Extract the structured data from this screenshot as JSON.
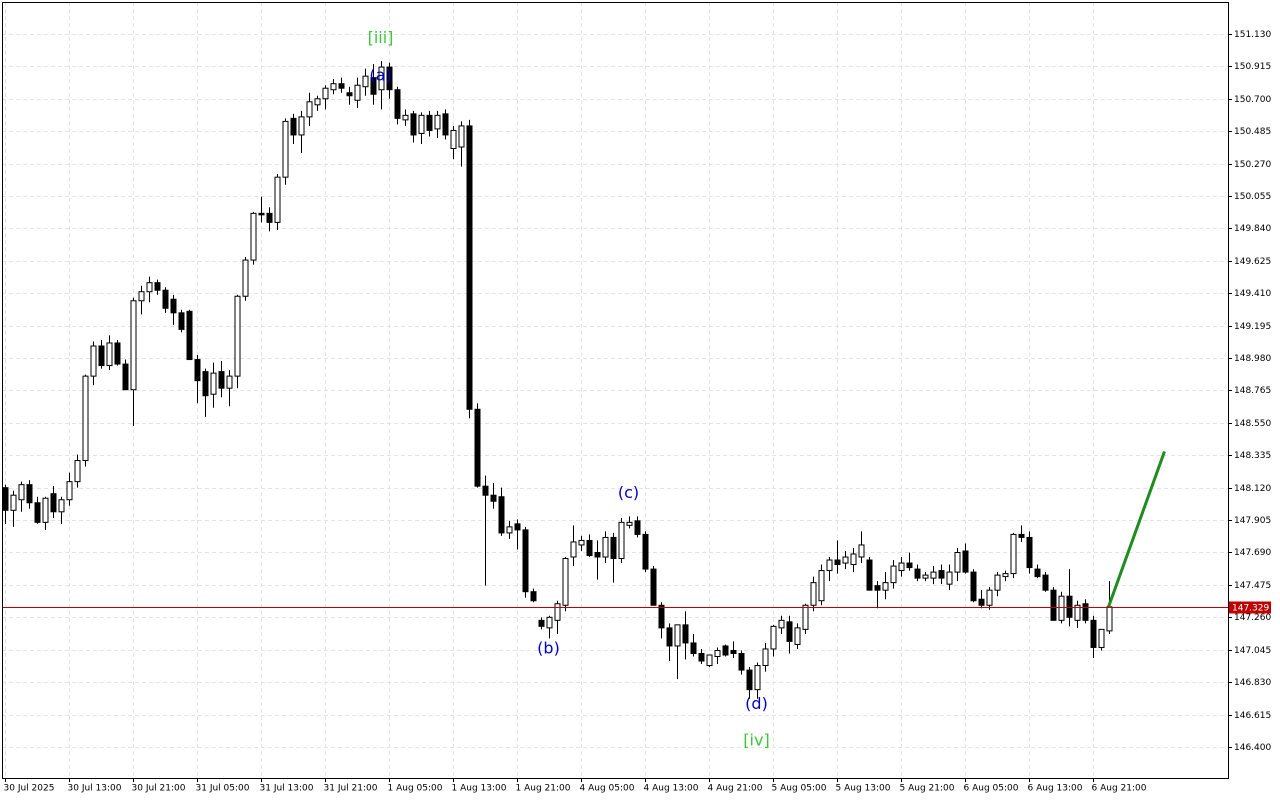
{
  "chart_data": {
    "type": "candlestick",
    "categories": [
      "30 Jul 2025",
      null,
      null,
      null,
      null,
      null,
      null,
      null,
      "30 Jul 13:00",
      null,
      null,
      null,
      null,
      null,
      null,
      null,
      "30 Jul 21:00",
      null,
      null,
      null,
      null,
      null,
      null,
      null,
      "31 Jul 05:00",
      null,
      null,
      null,
      null,
      null,
      null,
      null,
      "31 Jul 13:00",
      null,
      null,
      null,
      null,
      null,
      null,
      null,
      "31 Jul 21:00",
      null,
      null,
      null,
      null,
      null,
      null,
      null,
      "1 Aug 05:00",
      null,
      null,
      null,
      null,
      null,
      null,
      null,
      "1 Aug 13:00",
      null,
      null,
      null,
      null,
      null,
      null,
      null,
      "1 Aug 21:00",
      null,
      null,
      null,
      null,
      null,
      null,
      null,
      "4 Aug 05:00",
      null,
      null,
      null,
      null,
      null,
      null,
      null,
      "4 Aug 13:00",
      null,
      null,
      null,
      null,
      null,
      null,
      null,
      "4 Aug 21:00",
      null,
      null,
      null,
      null,
      null,
      null,
      null,
      "5 Aug 05:00",
      null,
      null,
      null,
      null,
      null,
      null,
      null,
      "5 Aug 13:00",
      null,
      null,
      null,
      null,
      null,
      null,
      null,
      "5 Aug 21:00",
      null,
      null,
      null,
      null,
      null,
      null,
      null,
      "6 Aug 05:00",
      null,
      null,
      null,
      null,
      null,
      null,
      null,
      "6 Aug 13:00",
      null,
      null,
      null,
      null,
      null,
      null,
      null,
      "6 Aug 21:00",
      null,
      null
    ],
    "open": [
      148.12,
      147.97,
      148.04,
      148.14,
      148.02,
      147.89,
      148.08,
      147.96,
      148.04,
      148.16,
      148.3,
      148.86,
      149.06,
      148.93,
      149.08,
      148.94,
      148.77,
      149.36,
      149.42,
      149.48,
      149.43,
      149.37,
      149.28,
      149.29,
      148.97,
      148.89,
      148.74,
      148.89,
      148.78,
      148.86,
      149.39,
      149.63,
      149.94,
      149.94,
      149.88,
      150.18,
      150.57,
      150.46,
      150.58,
      150.66,
      150.7,
      150.76,
      150.8,
      150.74,
      150.69,
      150.78,
      150.84,
      150.76,
      150.91,
      150.76,
      150.56,
      150.6,
      150.47,
      150.59,
      150.5,
      150.6,
      150.37,
      150.38,
      150.52,
      148.64,
      148.13,
      148.07,
      148.06,
      147.82,
      147.88,
      147.84,
      147.43,
      147.24,
      147.19,
      147.24,
      147.34,
      147.66,
      147.74,
      147.77,
      147.69,
      147.66,
      147.79,
      147.65,
      147.87,
      147.9,
      147.81,
      147.58,
      147.34,
      147.19,
      147.07,
      147.21,
      147.09,
      147.02,
      146.94,
      147.0,
      147.07,
      147.04,
      147.02,
      146.91,
      146.78,
      146.94,
      147.05,
      147.19,
      147.23,
      147.08,
      147.18,
      147.34,
      147.37,
      147.57,
      147.64,
      147.62,
      147.61,
      147.66,
      147.64,
      147.47,
      147.44,
      147.49,
      147.57,
      147.62,
      147.58,
      147.52,
      147.52,
      147.57,
      147.48,
      147.56,
      147.7,
      147.56,
      147.38,
      147.34,
      147.44,
      147.53,
      147.55,
      147.81,
      147.79,
      147.58,
      147.54,
      147.44,
      147.24,
      147.4,
      147.24,
      147.35,
      147.24,
      147.06,
      147.17
    ],
    "high": [
      148.14,
      148.1,
      148.16,
      148.17,
      148.06,
      148.06,
      148.13,
      148.06,
      148.22,
      148.34,
      148.87,
      149.09,
      149.1,
      149.13,
      149.1,
      148.97,
      149.38,
      149.46,
      149.52,
      149.5,
      149.45,
      149.4,
      149.3,
      149.3,
      149.0,
      148.91,
      148.95,
      148.96,
      148.9,
      149.4,
      149.65,
      149.95,
      150.05,
      149.98,
      150.2,
      150.57,
      150.6,
      150.62,
      150.74,
      150.72,
      150.79,
      150.83,
      150.84,
      150.78,
      150.84,
      150.9,
      150.93,
      150.95,
      150.94,
      150.78,
      150.63,
      150.62,
      150.61,
      150.62,
      150.62,
      150.63,
      150.52,
      150.55,
      150.56,
      148.68,
      148.2,
      148.15,
      148.12,
      147.9,
      147.91,
      147.86,
      147.45,
      147.26,
      147.27,
      147.37,
      147.66,
      147.87,
      147.8,
      147.81,
      147.77,
      147.83,
      147.82,
      147.92,
      147.93,
      147.93,
      147.83,
      147.6,
      147.36,
      147.22,
      147.21,
      147.3,
      147.15,
      147.05,
      147.0,
      147.06,
      147.08,
      147.1,
      147.04,
      146.93,
      146.96,
      147.09,
      147.21,
      147.27,
      147.27,
      147.22,
      147.35,
      147.53,
      147.61,
      147.66,
      147.77,
      147.7,
      147.72,
      147.83,
      147.66,
      147.5,
      147.56,
      147.64,
      147.66,
      147.69,
      147.61,
      147.56,
      147.6,
      147.61,
      147.61,
      147.72,
      147.75,
      147.58,
      147.44,
      147.46,
      147.56,
      147.57,
      147.82,
      147.87,
      147.83,
      147.61,
      147.56,
      147.46,
      147.43,
      147.58,
      147.37,
      147.38,
      147.27,
      147.18,
      147.5
    ],
    "low": [
      147.88,
      147.86,
      147.96,
      147.98,
      147.88,
      147.84,
      147.92,
      147.88,
      148.0,
      148.12,
      148.26,
      148.8,
      148.91,
      148.9,
      148.93,
      148.77,
      148.53,
      149.27,
      149.35,
      149.4,
      149.28,
      149.2,
      149.15,
      148.97,
      148.68,
      148.59,
      148.65,
      148.72,
      148.66,
      148.78,
      149.36,
      149.6,
      149.88,
      149.82,
      149.83,
      150.13,
      150.4,
      150.34,
      150.52,
      150.62,
      150.63,
      150.73,
      150.74,
      150.66,
      150.64,
      150.72,
      150.66,
      150.63,
      150.7,
      150.53,
      150.52,
      150.41,
      150.4,
      150.45,
      150.44,
      150.43,
      150.3,
      150.25,
      148.58,
      148.12,
      147.47,
      147.98,
      147.8,
      147.78,
      147.71,
      147.39,
      147.36,
      147.18,
      147.12,
      147.15,
      147.3,
      147.6,
      147.7,
      147.66,
      147.51,
      147.62,
      147.49,
      147.62,
      147.85,
      147.79,
      147.56,
      147.34,
      147.12,
      146.97,
      146.85,
      146.98,
      147.0,
      146.95,
      146.93,
      146.95,
      147.0,
      146.99,
      146.88,
      146.72,
      146.72,
      146.9,
      147.0,
      147.15,
      147.02,
      147.05,
      147.15,
      147.3,
      147.34,
      147.5,
      147.55,
      147.58,
      147.56,
      147.62,
      147.45,
      147.32,
      147.38,
      147.45,
      147.53,
      147.57,
      147.5,
      147.5,
      147.48,
      147.48,
      147.44,
      147.5,
      147.55,
      147.36,
      147.32,
      147.31,
      147.4,
      147.5,
      147.52,
      147.76,
      147.55,
      147.52,
      147.43,
      147.24,
      147.22,
      147.2,
      147.19,
      147.22,
      146.99,
      147.04,
      147.15
    ],
    "close": [
      147.97,
      148.07,
      148.14,
      148.02,
      147.89,
      148.05,
      147.96,
      148.04,
      148.16,
      148.3,
      148.86,
      149.06,
      148.93,
      149.08,
      148.94,
      148.77,
      149.36,
      149.42,
      149.48,
      149.43,
      149.31,
      149.28,
      149.17,
      148.97,
      148.83,
      148.73,
      148.88,
      148.78,
      148.86,
      149.39,
      149.63,
      149.94,
      149.93,
      149.88,
      150.18,
      150.55,
      150.46,
      150.58,
      150.68,
      150.7,
      150.77,
      150.8,
      150.77,
      150.72,
      150.79,
      150.85,
      150.73,
      150.91,
      150.76,
      150.57,
      150.59,
      150.46,
      150.59,
      150.49,
      150.59,
      150.46,
      150.49,
      150.52,
      148.64,
      148.13,
      148.07,
      148.03,
      147.82,
      147.86,
      147.84,
      147.43,
      147.37,
      147.2,
      147.26,
      147.35,
      147.65,
      147.76,
      147.77,
      147.67,
      147.66,
      147.79,
      147.65,
      147.89,
      147.89,
      147.81,
      147.58,
      147.34,
      147.19,
      147.07,
      147.21,
      147.09,
      147.02,
      146.97,
      147.01,
      147.04,
      147.01,
      147.02,
      146.91,
      146.78,
      146.94,
      147.05,
      147.2,
      147.24,
      147.1,
      147.19,
      147.34,
      147.49,
      147.57,
      147.64,
      147.61,
      147.66,
      147.68,
      147.74,
      147.44,
      147.44,
      147.49,
      147.6,
      147.62,
      147.59,
      147.52,
      147.54,
      147.56,
      147.52,
      147.56,
      147.69,
      147.56,
      147.37,
      147.34,
      147.44,
      147.54,
      147.55,
      147.81,
      147.79,
      147.59,
      147.53,
      147.44,
      147.24,
      147.4,
      147.26,
      147.34,
      147.24,
      147.06,
      147.18,
      147.329
    ],
    "up_color": "#ffffff",
    "down_color": "#000000",
    "wick_color": "#000000",
    "ylim": [
      146.194,
      151.342
    ],
    "yticks": [
      {
        "value": 146.4,
        "label": "146.400"
      },
      146.615,
      {
        "value": 146.83,
        "label": "146.830"
      },
      147.045,
      {
        "value": 147.26,
        "label": "147.260"
      },
      147.475,
      {
        "value": 147.69,
        "label": "147.690"
      },
      147.905,
      {
        "value": 148.12,
        "label": "148.120"
      },
      148.335,
      {
        "value": 148.55,
        "label": "148.550"
      },
      148.765,
      {
        "value": 148.98,
        "label": "148.980"
      },
      149.195,
      {
        "value": 149.41,
        "label": "149.410"
      },
      149.625,
      {
        "value": 149.84,
        "label": "149.840"
      },
      150.055,
      {
        "value": 150.27,
        "label": "150.270"
      },
      150.485,
      {
        "value": 150.7,
        "label": "150.700"
      },
      150.915,
      {
        "value": 151.13,
        "label": "151.130"
      }
    ],
    "grid": true,
    "last_price": 147.329,
    "last_price_color": "#c00000",
    "annotations": [
      {
        "text": "[iii]",
        "index": 47,
        "price": 151.1,
        "color": "#3cc83c"
      },
      {
        "text": "(a)",
        "index": 47,
        "price": 150.85,
        "color": "#0000cd"
      },
      {
        "text": "(b)",
        "index": 68,
        "price": 147.05,
        "color": "#0000cd"
      },
      {
        "text": "(c)",
        "index": 78,
        "price": 148.08,
        "color": "#0000cd"
      },
      {
        "text": "(d)",
        "index": 94,
        "price": 146.68,
        "color": "#0000cd"
      },
      {
        "text": "[iv]",
        "index": 94,
        "price": 146.44,
        "color": "#3cc83c"
      }
    ],
    "forecast": {
      "from_index": 138,
      "from_price": 147.329,
      "to_index": 145,
      "to_price": 148.36,
      "color": "#1e8c1e"
    }
  }
}
